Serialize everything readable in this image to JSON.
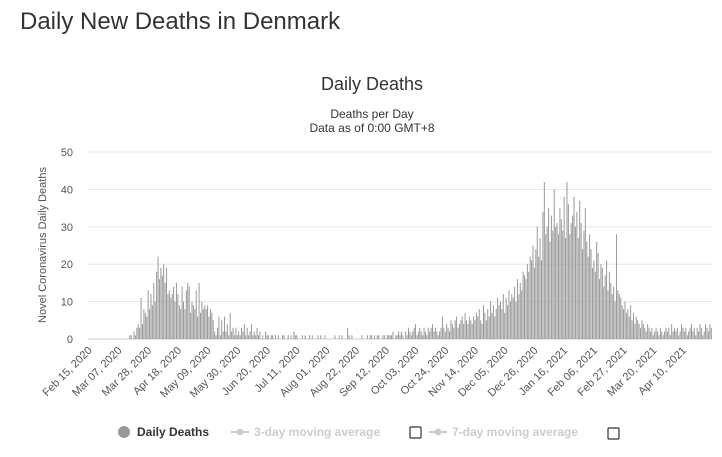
{
  "page": {
    "heading": "Daily New Deaths in Denmark"
  },
  "chart_data": {
    "type": "bar",
    "title": "Daily Deaths",
    "subtitle_lines": [
      "Deaths per Day",
      "Data as of 0:00 GMT+8"
    ],
    "ylabel": "Novel Coronavirus Daily Deaths",
    "ylim": [
      0,
      50
    ],
    "y_ticks": [
      "0",
      "10",
      "20",
      "30",
      "40",
      "50"
    ],
    "grid": true,
    "bar_color": "#999999",
    "x_tick_labels": [
      "Feb 15, 2020",
      "Mar 07, 2020",
      "Mar 28, 2020",
      "Apr 18, 2020",
      "May 09, 2020",
      "May 30, 2020",
      "Jun 20, 2020",
      "Jul 11, 2020",
      "Aug 01, 2020",
      "Aug 22, 2020",
      "Sep 12, 2020",
      "Oct 03, 2020",
      "Oct 24, 2020",
      "Nov 14, 2020",
      "Dec 05, 2020",
      "Dec 26, 2020",
      "Jan 16, 2021",
      "Feb 06, 2021",
      "Feb 27, 2021",
      "Mar 20, 2021",
      "Apr 10, 2021"
    ],
    "x_start": "Feb 15, 2020",
    "x_end": "Apr 24, 2021",
    "legend": {
      "position": "bottom",
      "items": [
        {
          "label": "Daily Deaths",
          "color": "#999999",
          "active": true
        },
        {
          "label": "3-day moving average",
          "color": "#cccccc",
          "active": false
        },
        {
          "label": "7-day moving average",
          "color": "#cccccc",
          "active": false
        }
      ]
    },
    "series": [
      {
        "name": "Daily Deaths",
        "values": [
          0,
          0,
          0,
          0,
          0,
          0,
          0,
          0,
          0,
          0,
          0,
          0,
          0,
          0,
          0,
          0,
          0,
          0,
          0,
          0,
          0,
          0,
          0,
          0,
          0,
          0,
          0,
          0,
          0,
          1,
          1,
          0,
          2,
          1,
          3,
          4,
          3,
          11,
          4,
          8,
          7,
          6,
          13,
          8,
          12,
          9,
          15,
          10,
          18,
          22,
          16,
          19,
          17,
          20,
          15,
          19,
          12,
          13,
          11,
          12,
          14,
          10,
          15,
          12,
          9,
          8,
          14,
          10,
          8,
          13,
          15,
          14,
          7,
          10,
          9,
          8,
          13,
          6,
          15,
          7,
          10,
          8,
          9,
          8,
          9,
          6,
          8,
          7,
          5,
          2,
          1,
          3,
          6,
          1,
          5,
          2,
          6,
          2,
          4,
          1,
          7,
          2,
          3,
          1,
          3,
          1,
          2,
          1,
          3,
          2,
          4,
          1,
          3,
          1,
          2,
          4,
          1,
          2,
          1,
          3,
          1,
          2,
          0,
          1,
          0,
          2,
          1,
          1,
          0,
          1,
          1,
          0,
          1,
          0,
          1,
          0,
          0,
          1,
          1,
          0,
          0,
          1,
          0,
          1,
          0,
          2,
          1,
          1,
          0,
          0,
          0,
          1,
          0,
          1,
          0,
          0,
          1,
          0,
          1,
          0,
          0,
          0,
          1,
          0,
          1,
          0,
          0,
          1,
          0,
          0,
          0,
          0,
          0,
          0,
          1,
          0,
          0,
          1,
          0,
          1,
          0,
          0,
          0,
          3,
          1,
          0,
          1,
          0,
          0,
          0,
          0,
          0,
          0,
          1,
          0,
          0,
          0,
          1,
          0,
          1,
          1,
          0,
          1,
          0,
          1,
          1,
          0,
          0,
          1,
          1,
          0,
          1,
          1,
          1,
          1,
          2,
          0,
          1,
          1,
          2,
          1,
          2,
          1,
          0,
          2,
          1,
          3,
          2,
          1,
          2,
          3,
          4,
          1,
          2,
          3,
          2,
          1,
          3,
          2,
          1,
          3,
          2,
          3,
          4,
          2,
          3,
          2,
          1,
          2,
          3,
          6,
          3,
          2,
          4,
          3,
          2,
          5,
          4,
          3,
          5,
          6,
          3,
          4,
          5,
          6,
          4,
          7,
          5,
          4,
          6,
          5,
          4,
          6,
          5,
          7,
          6,
          8,
          5,
          4,
          9,
          7,
          5,
          8,
          6,
          10,
          7,
          9,
          6,
          8,
          11,
          9,
          10,
          8,
          12,
          7,
          11,
          9,
          13,
          10,
          12,
          11,
          14,
          10,
          16,
          12,
          15,
          13,
          18,
          17,
          16,
          20,
          18,
          22,
          21,
          25,
          19,
          24,
          30,
          22,
          27,
          21,
          34,
          42,
          28,
          30,
          35,
          26,
          33,
          29,
          40,
          30,
          31,
          28,
          35,
          32,
          29,
          38,
          27,
          42,
          36,
          28,
          31,
          33,
          38,
          30,
          34,
          27,
          37,
          31,
          24,
          29,
          35,
          26,
          22,
          28,
          24,
          19,
          21,
          18,
          26,
          23,
          16,
          20,
          19,
          14,
          17,
          21,
          13,
          18,
          15,
          12,
          14,
          10,
          28,
          13,
          12,
          11,
          9,
          8,
          10,
          7,
          8,
          6,
          9,
          5,
          7,
          4,
          6,
          5,
          4,
          3,
          5,
          4,
          3,
          2,
          4,
          3,
          2,
          3,
          1,
          2,
          3,
          2,
          1,
          3,
          2,
          1,
          2,
          3,
          2,
          3,
          1,
          4,
          2,
          3,
          2,
          3,
          1,
          2,
          4,
          3,
          2,
          3,
          1,
          2,
          3,
          4,
          2,
          3,
          1,
          3,
          2,
          4,
          3,
          1,
          2,
          4,
          3,
          2,
          4,
          3
        ]
      }
    ]
  }
}
